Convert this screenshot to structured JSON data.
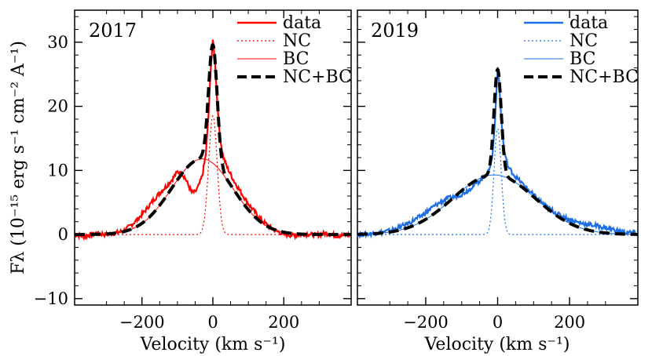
{
  "chart_data": [
    {
      "type": "line",
      "panel_label": "2017",
      "panel_label_color": "#ff0000",
      "xlabel": "Velocity (km s⁻¹)",
      "ylabel": "Fλ (10⁻¹⁵ erg s⁻¹ cm⁻² A⁻¹)",
      "xlim": [
        -390,
        390
      ],
      "ylim": [
        -11,
        35
      ],
      "xticks": [
        -200,
        0,
        200
      ],
      "xtick_labels": [
        "−200",
        "0",
        "200"
      ],
      "yticks": [
        -10,
        0,
        10,
        20,
        30
      ],
      "ytick_labels": [
        "−10",
        "0",
        "10",
        "20",
        "30"
      ],
      "legend": {
        "placement": "top-right",
        "entries": [
          {
            "label": "data",
            "style": "solid",
            "color": "#ff0000"
          },
          {
            "label": "NC",
            "style": "dotted",
            "color": "#ff0000"
          },
          {
            "label": "BC",
            "style": "thin",
            "color": "#ff0000"
          },
          {
            "label": "NC+BC",
            "style": "dashed",
            "color": "#000000"
          }
        ]
      },
      "components": {
        "nc": {
          "amplitude": 18.5,
          "center": 0,
          "sigma": 12
        },
        "bc": {
          "amplitude": 11.8,
          "center": -30,
          "sigma": 87
        }
      },
      "data_points": [
        [
          -390,
          0.0
        ],
        [
          -360,
          -0.3
        ],
        [
          -330,
          0.2
        ],
        [
          -300,
          0.0
        ],
        [
          -270,
          0.3
        ],
        [
          -250,
          0.6
        ],
        [
          -230,
          1.5
        ],
        [
          -210,
          2.5
        ],
        [
          -190,
          3.8
        ],
        [
          -170,
          5.2
        ],
        [
          -150,
          6.5
        ],
        [
          -130,
          7.6
        ],
        [
          -115,
          8.6
        ],
        [
          -100,
          9.8
        ],
        [
          -90,
          9.6
        ],
        [
          -80,
          9.0
        ],
        [
          -70,
          7.8
        ],
        [
          -60,
          6.6
        ],
        [
          -50,
          6.6
        ],
        [
          -40,
          7.6
        ],
        [
          -30,
          9.2
        ],
        [
          -20,
          12.5
        ],
        [
          -12,
          19.0
        ],
        [
          -6,
          26.0
        ],
        [
          0,
          30.3
        ],
        [
          6,
          27.0
        ],
        [
          12,
          21.0
        ],
        [
          20,
          15.0
        ],
        [
          30,
          12.0
        ],
        [
          40,
          10.5
        ],
        [
          60,
          8.3
        ],
        [
          80,
          6.5
        ],
        [
          100,
          4.8
        ],
        [
          120,
          3.4
        ],
        [
          140,
          2.1
        ],
        [
          160,
          1.2
        ],
        [
          180,
          0.5
        ],
        [
          200,
          0.1
        ],
        [
          230,
          -0.2
        ],
        [
          260,
          0.1
        ],
        [
          290,
          -0.1
        ],
        [
          320,
          0.2
        ],
        [
          350,
          -0.2
        ],
        [
          390,
          0.0
        ]
      ]
    },
    {
      "type": "line",
      "panel_label": "2019",
      "panel_label_color": "#1e6ee6",
      "xlabel": "Velocity (km s⁻¹)",
      "xlim": [
        -390,
        390
      ],
      "ylim": [
        -11,
        35
      ],
      "xticks": [
        -200,
        0,
        200
      ],
      "xtick_labels": [
        "−200",
        "0",
        "200"
      ],
      "yticks": [
        -10,
        0,
        10,
        20,
        30
      ],
      "legend": {
        "placement": "top-right",
        "entries": [
          {
            "label": "data",
            "style": "solid",
            "color": "#1e6ee6"
          },
          {
            "label": "NC",
            "style": "dotted",
            "color": "#1e6ee6"
          },
          {
            "label": "BC",
            "style": "thin",
            "color": "#1e6ee6"
          },
          {
            "label": "NC+BC",
            "style": "dashed",
            "color": "#000000"
          }
        ]
      },
      "components": {
        "nc": {
          "amplitude": 16.5,
          "center": 0,
          "sigma": 10
        },
        "bc": {
          "amplitude": 9.3,
          "center": -10,
          "sigma": 115
        }
      },
      "data_points": [
        [
          -390,
          0.0
        ],
        [
          -360,
          0.1
        ],
        [
          -330,
          0.3
        ],
        [
          -300,
          0.6
        ],
        [
          -270,
          1.2
        ],
        [
          -240,
          2.0
        ],
        [
          -210,
          3.0
        ],
        [
          -180,
          4.3
        ],
        [
          -160,
          5.0
        ],
        [
          -140,
          5.6
        ],
        [
          -120,
          5.9
        ],
        [
          -100,
          6.3
        ],
        [
          -80,
          7.0
        ],
        [
          -60,
          8.0
        ],
        [
          -40,
          8.8
        ],
        [
          -25,
          9.8
        ],
        [
          -15,
          12.0
        ],
        [
          -8,
          17.0
        ],
        [
          -3,
          23.0
        ],
        [
          0,
          25.8
        ],
        [
          4,
          24.0
        ],
        [
          10,
          18.0
        ],
        [
          18,
          13.0
        ],
        [
          30,
          10.5
        ],
        [
          50,
          9.0
        ],
        [
          80,
          7.3
        ],
        [
          110,
          5.6
        ],
        [
          140,
          4.2
        ],
        [
          170,
          3.1
        ],
        [
          200,
          2.3
        ],
        [
          230,
          1.8
        ],
        [
          260,
          1.5
        ],
        [
          290,
          1.2
        ],
        [
          320,
          0.8
        ],
        [
          350,
          0.3
        ],
        [
          380,
          0.3
        ],
        [
          390,
          0.0
        ]
      ]
    }
  ]
}
